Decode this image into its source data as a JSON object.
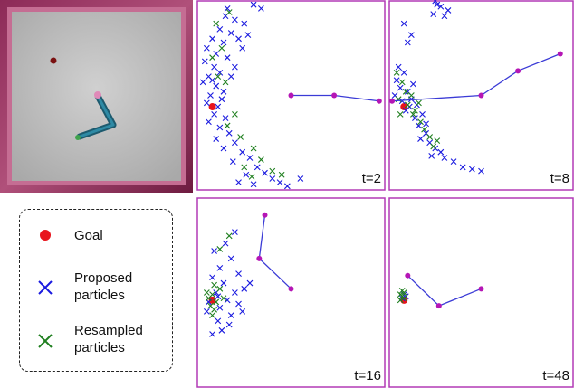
{
  "chart_data": [
    {
      "type": "scatter",
      "title": "t=2",
      "xlim": [
        0,
        100
      ],
      "ylim": [
        0,
        100
      ],
      "series": [
        {
          "name": "Goal",
          "color": "#e8141c",
          "marker": "dot",
          "x": [
            8
          ],
          "y": [
            44
          ]
        },
        {
          "name": "Proposed particles",
          "color": "#1a1adf",
          "marker": "cross",
          "x": [
            30,
            34,
            15,
            20,
            25,
            12,
            18,
            22,
            8,
            14,
            5,
            10,
            16,
            4,
            9,
            12,
            6,
            3,
            10,
            14,
            7,
            5,
            11,
            9,
            15,
            6,
            12,
            17,
            10,
            20,
            14,
            24,
            28,
            19,
            32,
            36,
            26,
            40,
            44,
            30,
            48,
            22,
            55,
            13,
            8,
            18,
            20,
            24,
            27,
            16
          ],
          "y": [
            98,
            96,
            92,
            90,
            88,
            85,
            83,
            80,
            80,
            78,
            75,
            72,
            70,
            68,
            65,
            62,
            60,
            57,
            55,
            52,
            50,
            46,
            44,
            40,
            38,
            36,
            33,
            30,
            27,
            25,
            22,
            20,
            17,
            15,
            12,
            9,
            8,
            6,
            4,
            3,
            2,
            4,
            6,
            48,
            58,
            60,
            65,
            75,
            82,
            96
          ]
        },
        {
          "name": "Resampled particles",
          "color": "#1f7f1f",
          "marker": "cross",
          "x": [
            17,
            10,
            13,
            8,
            11,
            15,
            20,
            16,
            23,
            30,
            34,
            25,
            40,
            29,
            45
          ],
          "y": [
            94,
            88,
            75,
            70,
            60,
            57,
            40,
            34,
            28,
            22,
            16,
            12,
            10,
            7,
            8
          ]
        }
      ],
      "arm": {
        "color": "#3b3bd6",
        "joint_color": "#b516b5",
        "x": [
          50,
          73,
          97
        ],
        "y": [
          50,
          50,
          47
        ]
      }
    },
    {
      "type": "scatter",
      "title": "t=8",
      "xlim": [
        0,
        100
      ],
      "ylim": [
        0,
        100
      ],
      "series": [
        {
          "color": "#e8141c",
          "marker": "dot",
          "x": [
            8
          ],
          "y": [
            44
          ]
        },
        {
          "color": "#1a1adf",
          "marker": "cross",
          "x": [
            25,
            28,
            24,
            32,
            8,
            12,
            10,
            5,
            8,
            4,
            6,
            10,
            12,
            3,
            15,
            9,
            14,
            18,
            16,
            20,
            17,
            22,
            25,
            28,
            23,
            30,
            35,
            40,
            45,
            50,
            20,
            13,
            7,
            11,
            26,
            30
          ],
          "y": [
            100,
            97,
            93,
            95,
            88,
            82,
            78,
            65,
            62,
            58,
            54,
            52,
            48,
            50,
            45,
            42,
            38,
            40,
            34,
            30,
            27,
            25,
            22,
            20,
            18,
            17,
            15,
            12,
            11,
            10,
            35,
            56,
            47,
            44,
            98,
            92
          ]
        },
        {
          "color": "#1f7f1f",
          "marker": "cross",
          "x": [
            4,
            7,
            9,
            5,
            12,
            10,
            14,
            6,
            17,
            19,
            22,
            26,
            24,
            16,
            13
          ],
          "y": [
            62,
            57,
            52,
            48,
            50,
            45,
            42,
            40,
            36,
            32,
            28,
            26,
            23,
            46,
            40
          ]
        }
      ],
      "arm": {
        "color": "#3b3bd6",
        "joint_color": "#b516b5",
        "x": [
          1.5,
          50,
          70,
          93
        ],
        "y": [
          47,
          50,
          63,
          72
        ]
      }
    },
    {
      "type": "scatter",
      "title": "t=16",
      "xlim": [
        0,
        100
      ],
      "ylim": [
        0,
        100
      ],
      "series": [
        {
          "color": "#e8141c",
          "marker": "dot",
          "x": [
            8
          ],
          "y": [
            46
          ]
        },
        {
          "color": "#1a1adf",
          "marker": "cross",
          "x": [
            20,
            15,
            9,
            18,
            12,
            22,
            8,
            14,
            25,
            20,
            10,
            6,
            16,
            22,
            12,
            5,
            18,
            11,
            13,
            8,
            17,
            24,
            28,
            11
          ],
          "y": [
            82,
            76,
            72,
            68,
            63,
            60,
            58,
            55,
            52,
            50,
            50,
            45,
            46,
            44,
            42,
            40,
            38,
            35,
            30,
            28,
            33,
            40,
            55,
            48
          ]
        },
        {
          "color": "#1f7f1f",
          "marker": "cross",
          "x": [
            17,
            12,
            9,
            8,
            6,
            10,
            7,
            9,
            12,
            5,
            14,
            8
          ],
          "y": [
            80,
            73,
            54,
            49,
            47,
            45,
            43,
            41,
            52,
            50,
            47,
            38
          ]
        }
      ],
      "arm": {
        "color": "#3b3bd6",
        "joint_color": "#b516b5",
        "x": [
          36,
          33,
          50
        ],
        "y": [
          91,
          68,
          52
        ]
      }
    },
    {
      "type": "scatter",
      "title": "t=48",
      "xlim": [
        0,
        100
      ],
      "ylim": [
        0,
        100
      ],
      "series": [
        {
          "color": "#e8141c",
          "marker": "dot",
          "x": [
            8
          ],
          "y": [
            46
          ]
        },
        {
          "color": "#1a1adf",
          "marker": "cross",
          "x": [
            8,
            7,
            9
          ],
          "y": [
            49,
            47,
            48
          ]
        },
        {
          "color": "#1f7f1f",
          "marker": "cross",
          "x": [
            7,
            8,
            6,
            7,
            8,
            6
          ],
          "y": [
            51,
            50,
            49,
            48,
            47,
            46
          ]
        }
      ],
      "arm": {
        "color": "#3b3bd6",
        "joint_color": "#b516b5",
        "x": [
          10,
          27,
          50
        ],
        "y": [
          59,
          43,
          52
        ]
      }
    }
  ]
}
